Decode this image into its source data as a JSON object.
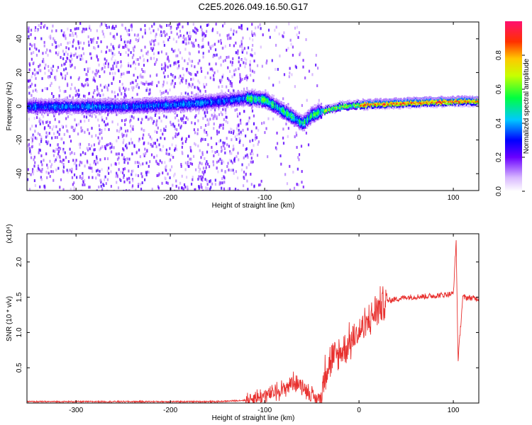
{
  "title": "C2E5.2026.049.16.50.G17",
  "chart_data": [
    {
      "type": "heatmap",
      "xlabel": "Height of straight line (km)",
      "ylabel": "Frequency (Hz)",
      "xlim": [
        -352,
        127
      ],
      "ylim": [
        -50,
        50
      ],
      "xticks": [
        -300,
        -200,
        -100,
        0,
        100
      ],
      "yticks": [
        -40,
        -20,
        0,
        20,
        40
      ],
      "colorbar": {
        "label": "Normalized spectral amplitude",
        "range": [
          0,
          1
        ],
        "ticks": [
          0.0,
          0.2,
          0.4,
          0.6,
          0.8
        ]
      },
      "ridge": {
        "x": [
          -352,
          -300,
          -250,
          -200,
          -150,
          -120,
          -100,
          -80,
          -60,
          -50,
          -40,
          -20,
          0,
          50,
          100,
          127
        ],
        "freq": [
          0,
          0,
          0,
          1,
          3,
          5,
          4,
          -3,
          -10,
          -5,
          -3,
          0,
          1,
          2,
          3,
          3
        ]
      },
      "colormap": "rainbow"
    },
    {
      "type": "line",
      "xlabel": "Height of straight line (km)",
      "ylabel": "SNR (10 * v/v)",
      "scale_label": "(x10⁴)",
      "xlim": [
        -352,
        127
      ],
      "ylim": [
        0,
        2.4
      ],
      "xticks": [
        -300,
        -200,
        -100,
        0,
        100
      ],
      "yticks": [
        0.5,
        1.0,
        1.5,
        2.0
      ],
      "series": [
        {
          "name": "SNR",
          "color": "#e8312f",
          "x": [
            -352,
            -150,
            -120,
            -100,
            -80,
            -70,
            -60,
            -50,
            -45,
            -40,
            -35,
            -30,
            -20,
            -10,
            0,
            10,
            20,
            30,
            50,
            80,
            100,
            103,
            105,
            110,
            127
          ],
          "y": [
            0.02,
            0.02,
            0.04,
            0.1,
            0.2,
            0.3,
            0.25,
            0.1,
            0.05,
            0.1,
            0.5,
            0.6,
            0.7,
            0.85,
            1.0,
            1.15,
            1.35,
            1.45,
            1.5,
            1.52,
            1.55,
            2.3,
            0.6,
            1.5,
            1.48
          ]
        }
      ]
    }
  ]
}
